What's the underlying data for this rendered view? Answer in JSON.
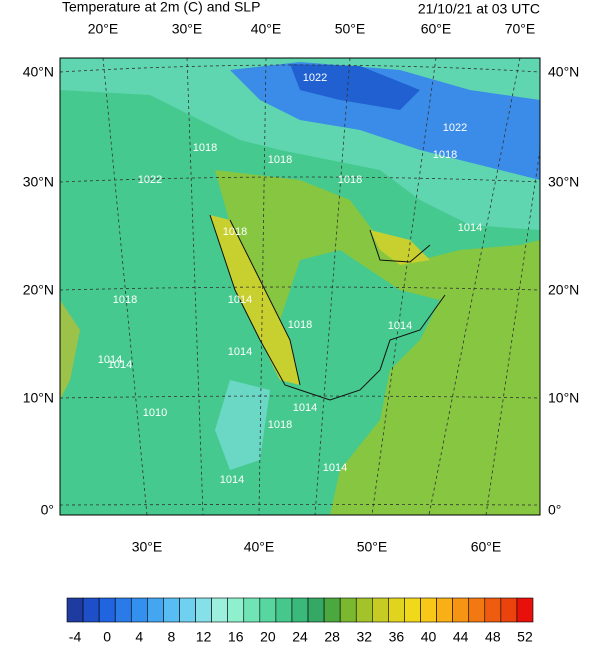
{
  "header": {
    "title_left": "Temperature at 2m (C) and SLP",
    "title_right": "21/10/21 at 03 UTC"
  },
  "map": {
    "top_labels": [
      "20°E",
      "30°E",
      "40°E",
      "50°E",
      "60°E",
      "70°E"
    ],
    "left_labels": [
      "40°N",
      "30°N",
      "20°N",
      "10°N",
      "0°"
    ],
    "right_labels": [
      "40°N",
      "30°N",
      "20°N",
      "10°N",
      "0°"
    ],
    "bottom_labels": [
      "30°E",
      "40°E",
      "50°E",
      "60°E"
    ],
    "contour_labels": [
      "1022",
      "1018",
      "1018",
      "1018",
      "1022",
      "1018",
      "1018",
      "1014",
      "1018",
      "1014",
      "1014",
      "1014",
      "1018",
      "1014",
      "1010",
      "1014",
      "1018",
      "1014",
      "1014",
      "1014",
      "1022"
    ]
  },
  "colorbar": {
    "labels": [
      -4,
      0,
      4,
      8,
      12,
      16,
      20,
      24,
      28,
      32,
      36,
      40,
      44,
      48,
      52
    ],
    "colors": [
      "#1e3ca0",
      "#1f4fc8",
      "#2064e0",
      "#2a7ae8",
      "#3490ee",
      "#44a6f0",
      "#58bdf2",
      "#6fd0f0",
      "#86e0e8",
      "#9ceedd",
      "#8ef0cc",
      "#70e4b4",
      "#58d6a0",
      "#46c88c",
      "#3aba7a",
      "#36a866",
      "#4aa83e",
      "#7ab830",
      "#a2c42a",
      "#c6cc24",
      "#e0d41e",
      "#f0d81a",
      "#f8c818",
      "#f8b016",
      "#f69414",
      "#f27812",
      "#ee5c10",
      "#ec420e",
      "#e8100a"
    ]
  }
}
